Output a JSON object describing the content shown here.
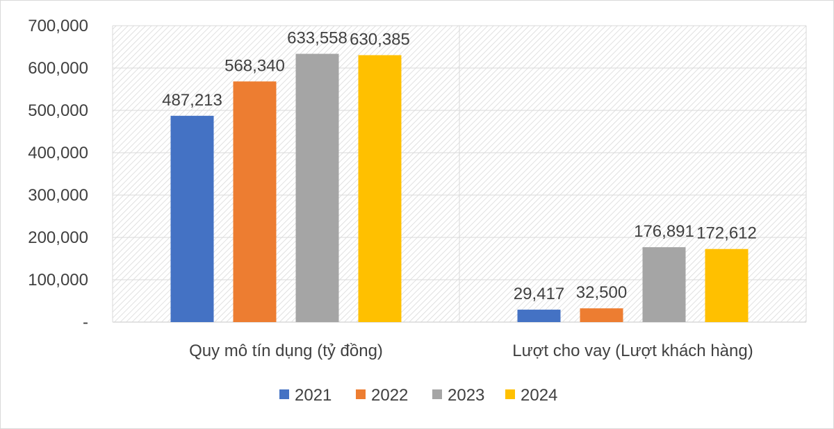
{
  "chart_data": {
    "type": "bar",
    "categories": [
      "Quy mô tín dụng (tỷ đồng)",
      "Lượt cho vay (Lượt khách hàng)"
    ],
    "series": [
      {
        "name": "2021",
        "color": "#4472C4",
        "values": [
          487213,
          29417
        ],
        "labels": [
          "487,213",
          "29,417"
        ]
      },
      {
        "name": "2022",
        "color": "#ED7D31",
        "values": [
          568340,
          32500
        ],
        "labels": [
          "568,340",
          "32,500"
        ]
      },
      {
        "name": "2023",
        "color": "#A5A5A5",
        "values": [
          633558,
          176891
        ],
        "labels": [
          "633,558",
          "176,891"
        ]
      },
      {
        "name": "2024",
        "color": "#FFC000",
        "values": [
          630385,
          172612
        ],
        "labels": [
          "630,385",
          "172,612"
        ]
      }
    ],
    "ylim": [
      0,
      700000
    ],
    "yticks": [
      0,
      100000,
      200000,
      300000,
      400000,
      500000,
      600000,
      700000
    ],
    "ytick_labels": [
      "-",
      "100,000",
      "200,000",
      "300,000",
      "400,000",
      "500,000",
      "600,000",
      "700,000"
    ],
    "grid": true,
    "legend_position": "bottom"
  }
}
